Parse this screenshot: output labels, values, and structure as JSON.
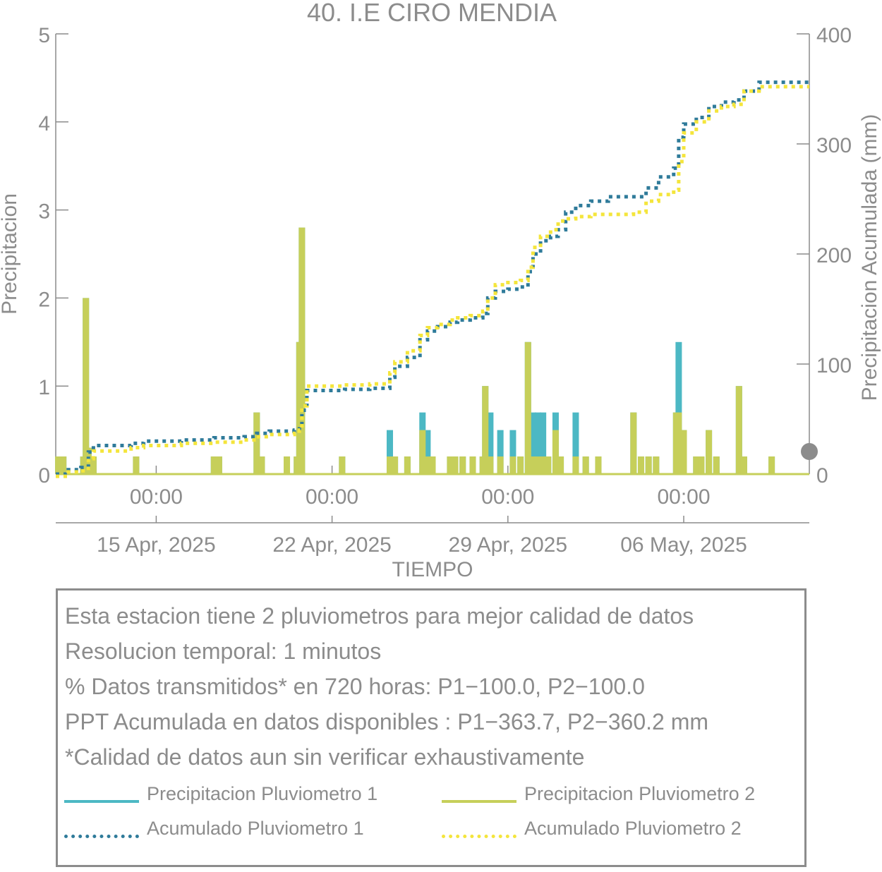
{
  "chart_data": {
    "type": "bar+line",
    "title": "40. I.E CIRO MENDIA",
    "xlabel": "TIEMPO",
    "ylabel_left": "Precipitacion",
    "ylabel_right": "Precipitacion Acumulada (mm)",
    "ylim_left": [
      0,
      5
    ],
    "ylim_right": [
      0,
      400
    ],
    "yticks_left": [
      "0",
      "1",
      "2",
      "3",
      "4",
      "5"
    ],
    "yticks_right": [
      "0",
      "100",
      "200",
      "300",
      "400"
    ],
    "xlim_days": [
      0,
      30
    ],
    "xticks": [
      {
        "day": 4,
        "time": "00:00",
        "date": "15 Apr, 2025"
      },
      {
        "day": 11,
        "time": "00:00",
        "date": "22 Apr, 2025"
      },
      {
        "day": 18,
        "time": "00:00",
        "date": "29 Apr, 2025"
      },
      {
        "day": 25,
        "time": "00:00",
        "date": "06 May, 2025"
      }
    ],
    "grid": false,
    "colors": {
      "p1": "#4cb8c4",
      "p2": "#c6cf5a",
      "acc1": "#2f7b9a",
      "acc2": "#f4e53c",
      "axis": "#8c8c8c"
    },
    "precip_p1": [
      [
        0.1,
        0.2
      ],
      [
        0.3,
        0.2
      ],
      [
        1.1,
        0.2
      ],
      [
        1.2,
        2.0
      ],
      [
        1.3,
        0.3
      ],
      [
        1.5,
        0.2
      ],
      [
        3.2,
        0.2
      ],
      [
        6.3,
        0.2
      ],
      [
        6.5,
        0.2
      ],
      [
        8.0,
        0.7
      ],
      [
        8.2,
        0.2
      ],
      [
        9.2,
        0.2
      ],
      [
        9.6,
        0.2
      ],
      [
        9.7,
        1.5
      ],
      [
        9.8,
        2.8
      ],
      [
        11.4,
        0.2
      ],
      [
        13.3,
        0.5
      ],
      [
        13.5,
        0.2
      ],
      [
        14.0,
        0.2
      ],
      [
        14.6,
        0.7
      ],
      [
        14.8,
        0.5
      ],
      [
        15.0,
        0.2
      ],
      [
        15.7,
        0.2
      ],
      [
        15.9,
        0.2
      ],
      [
        16.2,
        0.2
      ],
      [
        16.6,
        0.2
      ],
      [
        17.0,
        0.2
      ],
      [
        17.1,
        1.0
      ],
      [
        17.3,
        0.7
      ],
      [
        17.7,
        0.5
      ],
      [
        18.2,
        0.5
      ],
      [
        18.5,
        0.2
      ],
      [
        18.8,
        1.5
      ],
      [
        19.0,
        0.7
      ],
      [
        19.2,
        0.7
      ],
      [
        19.4,
        0.7
      ],
      [
        19.6,
        0.2
      ],
      [
        19.9,
        0.7
      ],
      [
        20.1,
        0.2
      ],
      [
        20.7,
        0.7
      ],
      [
        21.1,
        0.2
      ],
      [
        21.6,
        0.2
      ],
      [
        23.0,
        0.7
      ],
      [
        23.3,
        0.2
      ],
      [
        23.6,
        0.2
      ],
      [
        23.9,
        0.2
      ],
      [
        24.7,
        0.7
      ],
      [
        24.8,
        1.5
      ],
      [
        25.0,
        0.5
      ],
      [
        25.5,
        0.2
      ],
      [
        25.7,
        0.2
      ],
      [
        26.0,
        0.5
      ],
      [
        26.3,
        0.2
      ],
      [
        27.2,
        1.0
      ],
      [
        27.4,
        0.2
      ],
      [
        28.5,
        0.2
      ]
    ],
    "precip_p2": [
      [
        0.1,
        0.2
      ],
      [
        0.3,
        0.2
      ],
      [
        1.1,
        0.2
      ],
      [
        1.2,
        2.0
      ],
      [
        1.3,
        0.3
      ],
      [
        1.5,
        0.2
      ],
      [
        3.2,
        0.2
      ],
      [
        6.3,
        0.2
      ],
      [
        6.5,
        0.2
      ],
      [
        8.0,
        0.7
      ],
      [
        8.2,
        0.2
      ],
      [
        9.2,
        0.2
      ],
      [
        9.6,
        0.2
      ],
      [
        9.7,
        1.5
      ],
      [
        9.8,
        2.8
      ],
      [
        11.4,
        0.2
      ],
      [
        13.3,
        0.2
      ],
      [
        13.5,
        0.2
      ],
      [
        14.0,
        0.2
      ],
      [
        14.6,
        0.5
      ],
      [
        14.8,
        0.2
      ],
      [
        15.0,
        0.2
      ],
      [
        15.7,
        0.2
      ],
      [
        15.9,
        0.2
      ],
      [
        16.2,
        0.2
      ],
      [
        16.6,
        0.2
      ],
      [
        17.0,
        0.2
      ],
      [
        17.1,
        1.0
      ],
      [
        17.3,
        0.2
      ],
      [
        17.7,
        0.2
      ],
      [
        18.2,
        0.2
      ],
      [
        18.5,
        0.2
      ],
      [
        18.8,
        1.5
      ],
      [
        19.0,
        0.2
      ],
      [
        19.2,
        0.2
      ],
      [
        19.4,
        0.2
      ],
      [
        19.6,
        0.2
      ],
      [
        19.9,
        0.5
      ],
      [
        20.1,
        0.2
      ],
      [
        20.7,
        0.2
      ],
      [
        21.1,
        0.2
      ],
      [
        21.6,
        0.2
      ],
      [
        23.0,
        0.7
      ],
      [
        23.3,
        0.2
      ],
      [
        23.6,
        0.2
      ],
      [
        23.9,
        0.2
      ],
      [
        24.7,
        0.7
      ],
      [
        24.8,
        0.7
      ],
      [
        25.0,
        0.5
      ],
      [
        25.5,
        0.2
      ],
      [
        25.7,
        0.2
      ],
      [
        26.0,
        0.5
      ],
      [
        26.3,
        0.2
      ],
      [
        27.2,
        1.0
      ],
      [
        27.4,
        0.2
      ],
      [
        28.5,
        0.2
      ]
    ],
    "acumulado_p1": [
      [
        0,
        0
      ],
      [
        0.5,
        4
      ],
      [
        1.0,
        6
      ],
      [
        1.3,
        20
      ],
      [
        1.5,
        26
      ],
      [
        3.0,
        28
      ],
      [
        3.5,
        30
      ],
      [
        5.0,
        31
      ],
      [
        6.3,
        33
      ],
      [
        7.5,
        34
      ],
      [
        8.0,
        37
      ],
      [
        8.5,
        39
      ],
      [
        9.5,
        40
      ],
      [
        9.7,
        44
      ],
      [
        9.8,
        58
      ],
      [
        10.0,
        76
      ],
      [
        11.5,
        77
      ],
      [
        12.5,
        78
      ],
      [
        13.0,
        78
      ],
      [
        13.3,
        88
      ],
      [
        13.5,
        98
      ],
      [
        14.0,
        106
      ],
      [
        14.5,
        122
      ],
      [
        14.8,
        130
      ],
      [
        15.2,
        134
      ],
      [
        15.7,
        138
      ],
      [
        16.0,
        140
      ],
      [
        16.5,
        142
      ],
      [
        17.0,
        146
      ],
      [
        17.2,
        160
      ],
      [
        17.5,
        166
      ],
      [
        18.0,
        168
      ],
      [
        18.5,
        170
      ],
      [
        18.8,
        184
      ],
      [
        19.0,
        200
      ],
      [
        19.3,
        212
      ],
      [
        19.7,
        216
      ],
      [
        20.0,
        222
      ],
      [
        20.3,
        238
      ],
      [
        20.7,
        244
      ],
      [
        21.3,
        248
      ],
      [
        22.0,
        252
      ],
      [
        23.0,
        252
      ],
      [
        23.5,
        260
      ],
      [
        24.0,
        270
      ],
      [
        24.6,
        278
      ],
      [
        24.8,
        306
      ],
      [
        25.0,
        318
      ],
      [
        25.5,
        324
      ],
      [
        26.0,
        334
      ],
      [
        26.5,
        338
      ],
      [
        27.0,
        340
      ],
      [
        27.4,
        348
      ],
      [
        28.0,
        356
      ],
      [
        29.0,
        356
      ],
      [
        30.0,
        356
      ]
    ],
    "acumulado_p2": [
      [
        0,
        -2
      ],
      [
        0.5,
        2
      ],
      [
        1.0,
        3
      ],
      [
        1.3,
        14
      ],
      [
        1.5,
        21
      ],
      [
        3.0,
        24
      ],
      [
        3.5,
        26
      ],
      [
        5.0,
        28
      ],
      [
        6.3,
        29
      ],
      [
        7.5,
        31
      ],
      [
        8.0,
        34
      ],
      [
        8.5,
        36
      ],
      [
        9.5,
        37
      ],
      [
        9.7,
        40
      ],
      [
        9.8,
        62
      ],
      [
        10.0,
        80
      ],
      [
        11.5,
        81
      ],
      [
        12.5,
        82
      ],
      [
        13.0,
        82
      ],
      [
        13.3,
        92
      ],
      [
        13.5,
        102
      ],
      [
        14.0,
        112
      ],
      [
        14.5,
        126
      ],
      [
        14.8,
        133
      ],
      [
        15.2,
        136
      ],
      [
        15.7,
        140
      ],
      [
        16.0,
        142
      ],
      [
        16.5,
        144
      ],
      [
        17.0,
        148
      ],
      [
        17.2,
        160
      ],
      [
        17.5,
        172
      ],
      [
        18.0,
        174
      ],
      [
        18.5,
        176
      ],
      [
        18.8,
        188
      ],
      [
        19.0,
        206
      ],
      [
        19.3,
        216
      ],
      [
        19.7,
        222
      ],
      [
        20.0,
        230
      ],
      [
        20.3,
        232
      ],
      [
        20.7,
        234
      ],
      [
        21.3,
        236
      ],
      [
        22.0,
        236
      ],
      [
        23.0,
        238
      ],
      [
        23.5,
        248
      ],
      [
        24.0,
        254
      ],
      [
        24.6,
        258
      ],
      [
        24.8,
        284
      ],
      [
        25.0,
        310
      ],
      [
        25.5,
        320
      ],
      [
        26.0,
        330
      ],
      [
        26.5,
        334
      ],
      [
        27.0,
        336
      ],
      [
        27.4,
        348
      ],
      [
        28.0,
        352
      ],
      [
        29.0,
        352
      ],
      [
        30.0,
        352
      ]
    ],
    "info_lines": [
      "Esta estacion tiene 2 pluviometros para mejor calidad de datos",
      "Resolucion temporal: 1 minutos",
      "% Datos transmitidos* en 720 horas: P1−100.0, P2−100.0",
      "PPT Acumulada en datos disponibles : P1−363.7, P2−360.2 mm",
      "*Calidad de datos aun sin verificar exhaustivamente"
    ],
    "legend": [
      "Precipitacion Pluviometro 1",
      "Precipitacion Pluviometro 2",
      "Acumulado Pluviometro 1",
      "Acumulado Pluviometro 2"
    ]
  }
}
